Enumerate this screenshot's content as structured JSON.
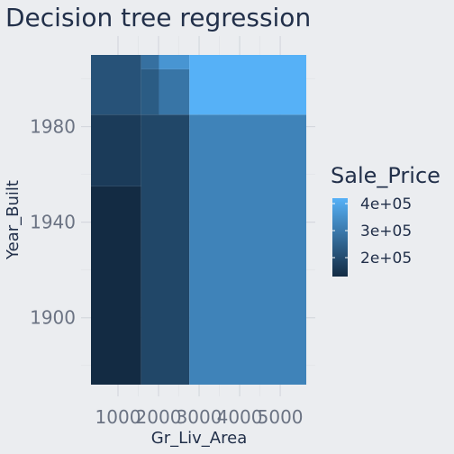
{
  "chart_data": {
    "type": "heatmap",
    "title": "Decision tree regression",
    "xlabel": "Gr_Liv_Area",
    "ylabel": "Year_Built",
    "xlim": [
      334,
      5642
    ],
    "ylim": [
      1872,
      2010
    ],
    "x_ticks": [
      1000,
      2000,
      3000,
      4000,
      5000
    ],
    "x_tick_labels": [
      "1000",
      "2000",
      "3000",
      "4000",
      "5000"
    ],
    "y_ticks": [
      1900,
      1940,
      1980
    ],
    "y_tick_labels": [
      "1900",
      "1940",
      "1980"
    ],
    "regions": [
      {
        "x0": 334,
        "x1": 1570,
        "y0": 1872,
        "y1": 1955,
        "value": 130000
      },
      {
        "x0": 334,
        "x1": 1570,
        "y0": 1955,
        "y1": 1985,
        "value": 165000
      },
      {
        "x0": 1570,
        "x1": 2760,
        "y0": 1872,
        "y1": 1985,
        "value": 190000
      },
      {
        "x0": 334,
        "x1": 1570,
        "y0": 1985,
        "y1": 2010,
        "value": 215000
      },
      {
        "x0": 1570,
        "x1": 2010,
        "y0": 1985,
        "y1": 2004,
        "value": 235000
      },
      {
        "x0": 1570,
        "x1": 2010,
        "y0": 2004,
        "y1": 2010,
        "value": 280000
      },
      {
        "x0": 2010,
        "x1": 2760,
        "y0": 1985,
        "y1": 2004,
        "value": 290000
      },
      {
        "x0": 2010,
        "x1": 2760,
        "y0": 2004,
        "y1": 2010,
        "value": 360000
      },
      {
        "x0": 2760,
        "x1": 5642,
        "y0": 1872,
        "y1": 1985,
        "value": 320000
      },
      {
        "x0": 2760,
        "x1": 5642,
        "y0": 1985,
        "y1": 2010,
        "value": 420000
      }
    ],
    "legend": {
      "title": "Sale_Price",
      "placement": "right",
      "range": [
        130000,
        420000
      ],
      "breaks": [
        200000,
        300000,
        400000
      ],
      "labels": [
        "2e+05",
        "3e+05",
        "4e+05"
      ],
      "color_low": "#132B43",
      "color_high": "#56B1F7"
    },
    "grid": true
  }
}
